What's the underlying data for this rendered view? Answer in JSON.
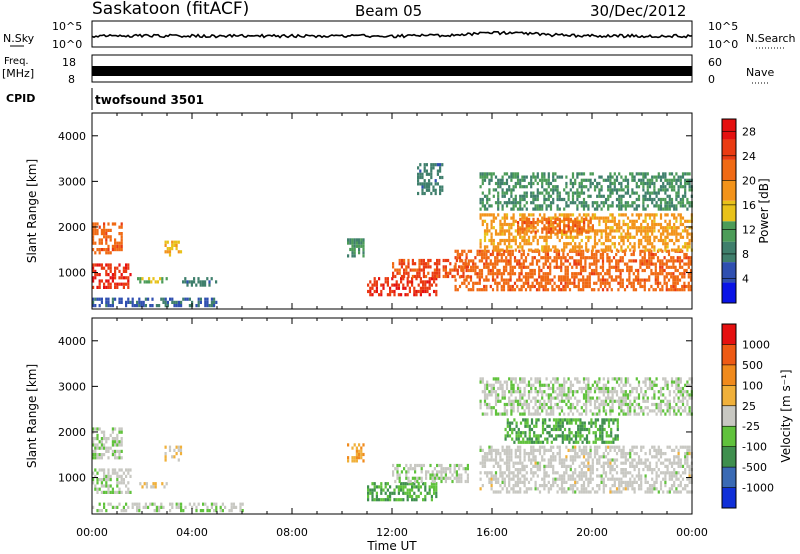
{
  "header": {
    "title": "Saskatoon (fitACF)",
    "beam": "Beam 05",
    "date": "30/Dec/2012"
  },
  "noise_panel": {
    "left_label": "N.Sky",
    "right_label": "N.Search",
    "left_ticks": [
      "10^5",
      "10^0"
    ],
    "right_ticks": [
      "10^5",
      "10^0"
    ]
  },
  "freq_panel": {
    "left_label_1": "Freq.",
    "left_label_2": "[MHz]",
    "right_label": "Nave",
    "left_ticks": [
      "18",
      "8"
    ],
    "right_ticks": [
      "60",
      "0"
    ]
  },
  "cpid_panel": {
    "label": "CPID",
    "value": "twofsound 3501"
  },
  "colors": {
    "power_scale": [
      "#0a14e6",
      "#2f4fb0",
      "#3f7f6c",
      "#4c9c58",
      "#e8c21a",
      "#f3931a",
      "#f06a14",
      "#ea3b12",
      "#e51010"
    ],
    "velocity_scale": [
      "#1030d8",
      "#3a6ab4",
      "#3f8f4e",
      "#60c23c",
      "#c8c8c2",
      "#f0b03a",
      "#f08a1c",
      "#ee5a14",
      "#e51010"
    ]
  },
  "chart_data": [
    {
      "type": "heatmap",
      "panel": "power",
      "ylabel": "Slant Range [km]",
      "yticks": [
        "1000",
        "2000",
        "3000",
        "4000"
      ],
      "ylim": [
        200,
        4500
      ],
      "xlim": [
        0,
        24
      ],
      "colorbar_label": "Power [dB]",
      "colorbar_ticks": [
        "4",
        "8",
        "12",
        "16",
        "20",
        "24",
        "28"
      ],
      "colorbar_range": [
        0,
        30
      ],
      "regions": [
        {
          "t0": 0.0,
          "t1": 1.5,
          "r0": 700,
          "r1": 1200,
          "value": 26
        },
        {
          "t0": 0.0,
          "t1": 1.2,
          "r0": 1400,
          "r1": 2100,
          "value": 22
        },
        {
          "t0": 0.0,
          "t1": 5.0,
          "r0": 250,
          "r1": 450,
          "value": 6
        },
        {
          "t0": 1.8,
          "t1": 3.0,
          "r0": 800,
          "r1": 900,
          "value": 14
        },
        {
          "t0": 2.9,
          "t1": 3.6,
          "r0": 1350,
          "r1": 1700,
          "value": 16
        },
        {
          "t0": 3.6,
          "t1": 5.0,
          "r0": 700,
          "r1": 900,
          "value": 8
        },
        {
          "t0": 10.2,
          "t1": 10.9,
          "r0": 1350,
          "r1": 1750,
          "value": 10
        },
        {
          "t0": 11.0,
          "t1": 13.8,
          "r0": 500,
          "r1": 900,
          "value": 26
        },
        {
          "t0": 12.0,
          "t1": 15.0,
          "r0": 900,
          "r1": 1300,
          "value": 24
        },
        {
          "t0": 14.5,
          "t1": 24.0,
          "r0": 600,
          "r1": 1500,
          "value": 22
        },
        {
          "t0": 15.5,
          "t1": 24.0,
          "r0": 1500,
          "r1": 2300,
          "value": 18
        },
        {
          "t0": 17.0,
          "t1": 20.0,
          "r0": 1900,
          "r1": 2200,
          "value": 22
        },
        {
          "t0": 15.5,
          "t1": 24.0,
          "r0": 2400,
          "r1": 3200,
          "value": 10
        },
        {
          "t0": 13.0,
          "t1": 14.0,
          "r0": 2700,
          "r1": 3400,
          "value": 8
        }
      ]
    },
    {
      "type": "heatmap",
      "panel": "velocity",
      "ylabel": "Slant Range [km]",
      "yticks": [
        "1000",
        "2000",
        "3000",
        "4000"
      ],
      "ylim": [
        200,
        4500
      ],
      "xlim": [
        0,
        24
      ],
      "xlabel": "Time UT",
      "xticks": [
        "00:00",
        "04:00",
        "08:00",
        "12:00",
        "16:00",
        "20:00",
        "00:00"
      ],
      "colorbar_label": "Velocity [m s⁻¹]",
      "colorbar_ticks": [
        "1000",
        "500",
        "100",
        "25",
        "-25",
        "-100",
        "-500",
        "-1000"
      ],
      "colorbar_range": [
        -1500,
        1500
      ],
      "regions": [
        {
          "t0": 0.0,
          "t1": 1.5,
          "r0": 700,
          "r1": 1200,
          "value": -100
        },
        {
          "t0": 0.0,
          "t1": 1.2,
          "r0": 1400,
          "r1": 2100,
          "value": -100
        },
        {
          "t0": 0.0,
          "t1": 6.0,
          "r0": 250,
          "r1": 450,
          "value": -100
        },
        {
          "t0": 1.8,
          "t1": 3.0,
          "r0": 800,
          "r1": 900,
          "value": 100
        },
        {
          "t0": 2.9,
          "t1": 3.6,
          "r0": 1350,
          "r1": 1700,
          "value": 100
        },
        {
          "t0": 10.2,
          "t1": 10.9,
          "r0": 1350,
          "r1": 1750,
          "value": 500
        },
        {
          "t0": 11.0,
          "t1": 13.8,
          "r0": 500,
          "r1": 900,
          "value": -500
        },
        {
          "t0": 12.0,
          "t1": 15.0,
          "r0": 900,
          "r1": 1300,
          "value": -100
        },
        {
          "t0": 15.5,
          "t1": 24.0,
          "r0": 700,
          "r1": 1700,
          "value": 0
        },
        {
          "t0": 16.5,
          "t1": 21.0,
          "r0": 1800,
          "r1": 2300,
          "value": -500
        },
        {
          "t0": 15.5,
          "t1": 24.0,
          "r0": 2400,
          "r1": 3200,
          "value": -100
        }
      ]
    }
  ]
}
